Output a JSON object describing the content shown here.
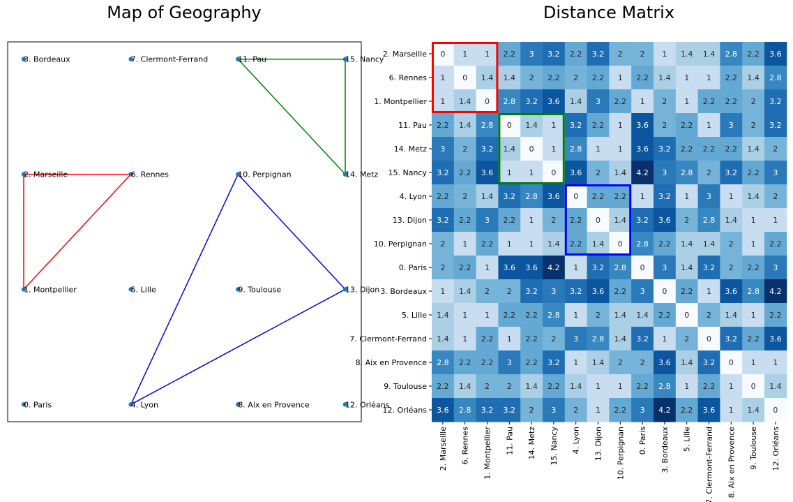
{
  "chart_data": [
    {
      "type": "scatter",
      "title": "Map of Geography",
      "xlim": [
        -0.15,
        3.15
      ],
      "ylim": [
        -0.15,
        3.15
      ],
      "point_color": "#1f77b4",
      "points": [
        {
          "label": "3. Bordeaux",
          "x": 0,
          "y": 3
        },
        {
          "label": "7. Clermont-Ferrand",
          "x": 1,
          "y": 3
        },
        {
          "label": "11. Pau",
          "x": 2,
          "y": 3
        },
        {
          "label": "15. Nancy",
          "x": 3,
          "y": 3
        },
        {
          "label": "2. Marseille",
          "x": 0,
          "y": 2
        },
        {
          "label": "6. Rennes",
          "x": 1,
          "y": 2
        },
        {
          "label": "10. Perpignan",
          "x": 2,
          "y": 2
        },
        {
          "label": "14. Metz",
          "x": 3,
          "y": 2
        },
        {
          "label": "1. Montpellier",
          "x": 0,
          "y": 1
        },
        {
          "label": "5. Lille",
          "x": 1,
          "y": 1
        },
        {
          "label": "9. Toulouse",
          "x": 2,
          "y": 1
        },
        {
          "label": "13. Dijon",
          "x": 3,
          "y": 1
        },
        {
          "label": "0. Paris",
          "x": 0,
          "y": 0
        },
        {
          "label": "4. Lyon",
          "x": 1,
          "y": 0
        },
        {
          "label": "8. Aix en Provence",
          "x": 2,
          "y": 0
        },
        {
          "label": "12. Orléans",
          "x": 3,
          "y": 0
        }
      ],
      "clusters": [
        {
          "color": "#ff0000",
          "cities": [
            "2. Marseille",
            "6. Rennes",
            "1. Montpellier"
          ]
        },
        {
          "color": "#008000",
          "cities": [
            "11. Pau",
            "14. Metz",
            "15. Nancy"
          ]
        },
        {
          "color": "#0000ff",
          "cities": [
            "4. Lyon",
            "13. Dijon",
            "10. Perpignan"
          ]
        }
      ]
    },
    {
      "type": "heatmap",
      "title": "Distance Matrix",
      "colormap": "Blues",
      "vmin": 0,
      "vmax": 4.2,
      "labels": [
        "2. Marseille",
        "6. Rennes",
        "1. Montpellier",
        "11. Pau",
        "14. Metz",
        "15. Nancy",
        "4. Lyon",
        "13. Dijon",
        "10. Perpignan",
        "0. Paris",
        "3. Bordeaux",
        "5. Lille",
        "7. Clermont-Ferrand",
        "8. Aix en Provence",
        "9. Toulouse",
        "12. Orléans"
      ],
      "matrix": [
        [
          0,
          1,
          1,
          2.2,
          3,
          3.2,
          2.2,
          3.2,
          2,
          2,
          1,
          1.4,
          1.4,
          2.8,
          2.2,
          3.6
        ],
        [
          1,
          0,
          1.4,
          1.4,
          2,
          2.2,
          2,
          2.2,
          1,
          2.2,
          1.4,
          1,
          1,
          2.2,
          1.4,
          2.8
        ],
        [
          1,
          1.4,
          0,
          2.8,
          3.2,
          3.6,
          1.4,
          3,
          2.2,
          1,
          2,
          1,
          2.2,
          2.2,
          2,
          3.2
        ],
        [
          2.2,
          1.4,
          2.8,
          0,
          1.4,
          1,
          3.2,
          2.2,
          1,
          3.6,
          2,
          2.2,
          1,
          3,
          2,
          3.2
        ],
        [
          3,
          2,
          3.2,
          1.4,
          0,
          1,
          2.8,
          1,
          1,
          3.6,
          3.2,
          2.2,
          2.2,
          2.2,
          1.4,
          2
        ],
        [
          3.2,
          2.2,
          3.6,
          1,
          1,
          0,
          3.6,
          2,
          1.4,
          4.2,
          3,
          2.8,
          2,
          3.2,
          2.2,
          3
        ],
        [
          2.2,
          2,
          1.4,
          3.2,
          2.8,
          3.6,
          0,
          2.2,
          2.2,
          1,
          3.2,
          1,
          3,
          1,
          1.4,
          2
        ],
        [
          3.2,
          2.2,
          3,
          2.2,
          1,
          2,
          2.2,
          0,
          1.4,
          3.2,
          3.6,
          2,
          2.8,
          1.4,
          1,
          1
        ],
        [
          2,
          1,
          2.2,
          1,
          1,
          1.4,
          2.2,
          1.4,
          0,
          2.8,
          2.2,
          1.4,
          1.4,
          2,
          1,
          2.2
        ],
        [
          2,
          2.2,
          1,
          3.6,
          3.6,
          4.2,
          1,
          3.2,
          2.8,
          0,
          3,
          1.4,
          3.2,
          2,
          2.2,
          3
        ],
        [
          1,
          1.4,
          2,
          2,
          3.2,
          3,
          3.2,
          3.6,
          2.2,
          3,
          0,
          2.2,
          1,
          3.6,
          2.8,
          4.2
        ],
        [
          1.4,
          1,
          1,
          2.2,
          2.2,
          2.8,
          1,
          2,
          1.4,
          1.4,
          2.2,
          0,
          2,
          1.4,
          1,
          2.2
        ],
        [
          1.4,
          1,
          2.2,
          1,
          2.2,
          2,
          3,
          2.8,
          1.4,
          3.2,
          1,
          2,
          0,
          3.2,
          2.2,
          3.6
        ],
        [
          2.8,
          2.2,
          2.2,
          3,
          2.2,
          3.2,
          1,
          1.4,
          2,
          2,
          3.6,
          1.4,
          3.2,
          0,
          1,
          1
        ],
        [
          2.2,
          1.4,
          2,
          2,
          1.4,
          2.2,
          1.4,
          1,
          1,
          2.2,
          2.8,
          1,
          2.2,
          1,
          0,
          1.4
        ],
        [
          3.6,
          2.8,
          3.2,
          3.2,
          2,
          3,
          2,
          1,
          2.2,
          3,
          4.2,
          2.2,
          3.6,
          1,
          1.4,
          0
        ]
      ],
      "highlight_blocks": [
        {
          "color": "#ff0000",
          "start": 0,
          "size": 3
        },
        {
          "color": "#008000",
          "start": 3,
          "size": 3
        },
        {
          "color": "#0000ff",
          "start": 6,
          "size": 3
        }
      ]
    }
  ]
}
